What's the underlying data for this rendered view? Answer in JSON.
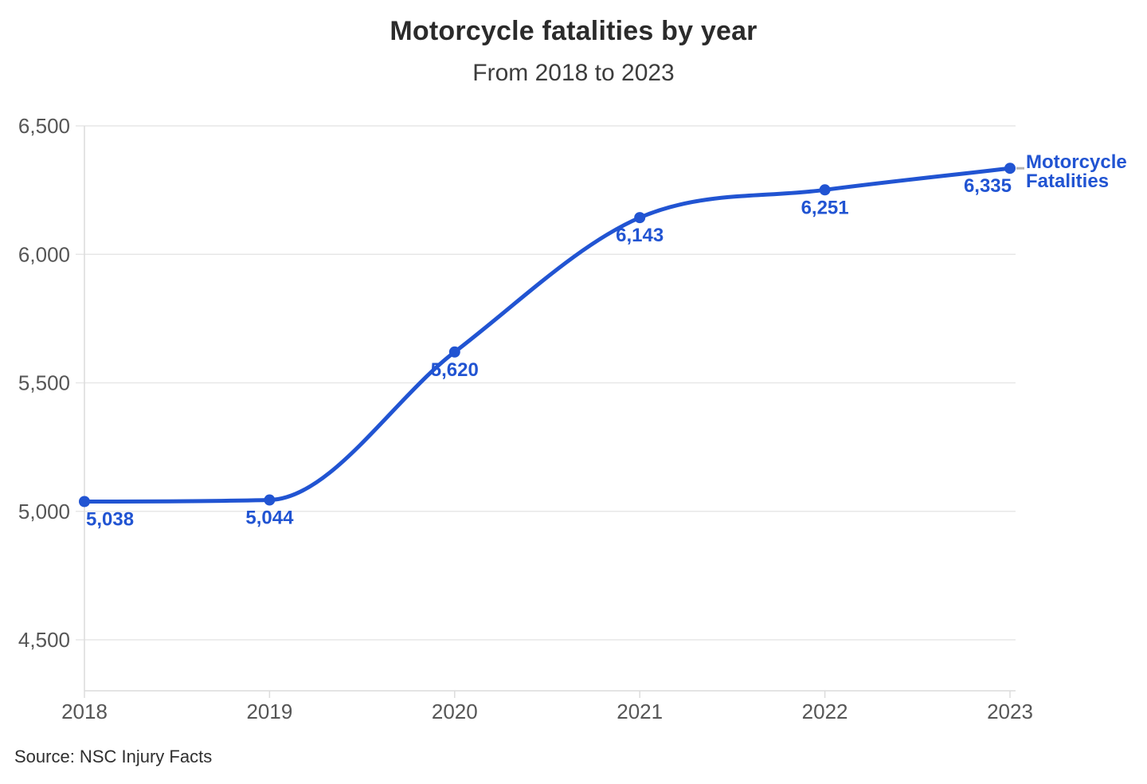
{
  "chart_data": {
    "type": "line",
    "title": "Motorcycle fatalities by year",
    "subtitle": "From 2018 to 2023",
    "source": "Source: NSC Injury Facts",
    "categories": [
      "2018",
      "2019",
      "2020",
      "2021",
      "2022",
      "2023"
    ],
    "series": [
      {
        "name": "Motorcycle Fatalities",
        "values": [
          5038,
          5044,
          5620,
          6143,
          6251,
          6335
        ]
      }
    ],
    "value_labels": [
      "5,038",
      "5,044",
      "5,620",
      "6,143",
      "6,251",
      "6,335"
    ],
    "legend": {
      "label_lines": [
        "Motorcycle",
        "Fatalities"
      ],
      "position": "end-of-line"
    },
    "yticks": [
      6500,
      6000,
      5500,
      5000,
      4500
    ],
    "ytick_labels": [
      "6,500",
      "6,000",
      "5,500",
      "5,000",
      "4,500"
    ],
    "ylim": [
      4500,
      6500
    ],
    "grid": "horizontal",
    "curve": "smooth-monotone",
    "colors": {
      "line": "#2154d2",
      "point": "#2154d2",
      "data_label": "#2154d2",
      "legend_text": "#2154d2",
      "axis_text": "#565656",
      "grid": "#e7e7e7",
      "axis": "#dcdcdc",
      "leader_dash": "#b5b5b5"
    }
  }
}
